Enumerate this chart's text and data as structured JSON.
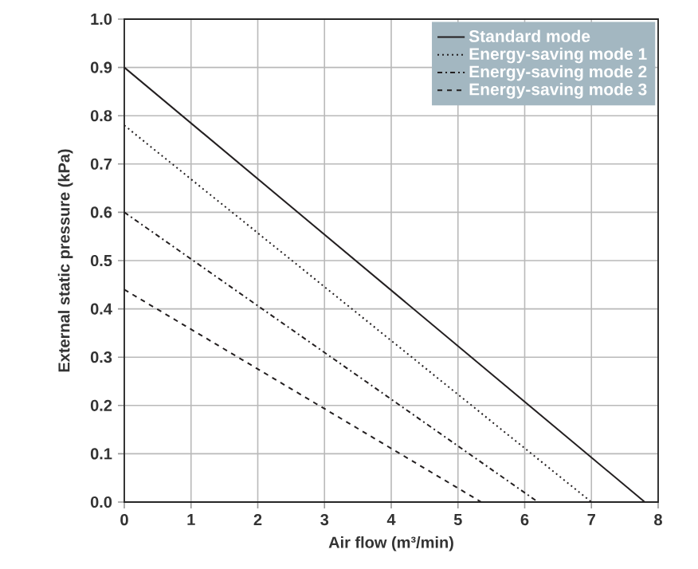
{
  "chart_data": {
    "type": "line",
    "xlabel": "Air flow (m³/min)",
    "ylabel": "External static pressure (kPa)",
    "series": [
      {
        "name": "Standard mode",
        "color": "#231f20",
        "line_style": "solid",
        "x": [
          0,
          7.8
        ],
        "values": [
          0.9,
          0
        ]
      },
      {
        "name": "Energy-saving mode 1",
        "color": "#231f20",
        "line_style": "dotted",
        "x": [
          0,
          7.0
        ],
        "values": [
          0.78,
          0
        ]
      },
      {
        "name": "Energy-saving mode 2",
        "color": "#231f20",
        "line_style": "dashdot",
        "x": [
          0,
          6.2
        ],
        "values": [
          0.6,
          0
        ]
      },
      {
        "name": "Energy-saving mode 3",
        "color": "#231f20",
        "line_style": "dashed",
        "x": [
          0,
          5.35
        ],
        "values": [
          0.44,
          0
        ]
      }
    ],
    "xlim": [
      0,
      8
    ],
    "xticks": [
      0,
      1,
      2,
      3,
      4,
      5,
      6,
      7,
      8
    ],
    "ylim": [
      0,
      1.0
    ],
    "yticks": [
      {
        "value": 0,
        "label": "0.0"
      },
      0.1,
      0.2,
      0.3,
      0.4,
      0.5,
      0.6,
      0.7,
      0.8,
      0.9,
      {
        "value": 1.0,
        "label": "1.0"
      }
    ],
    "grid": true,
    "legend": "top right",
    "marker": "none"
  }
}
